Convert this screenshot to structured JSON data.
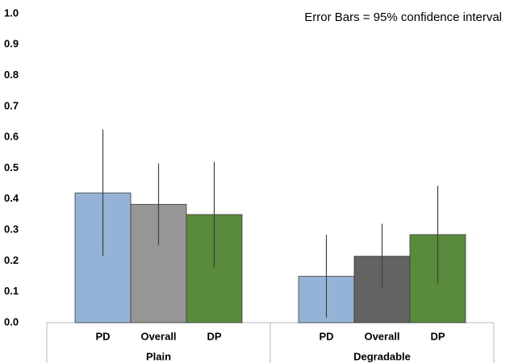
{
  "chart_data": {
    "type": "bar",
    "annotation": "Error Bars = 95% confidence interval",
    "groups": [
      "Plain",
      "Degradable"
    ],
    "categories": [
      "PD",
      "Overall",
      "DP",
      "PD",
      "Overall",
      "DP"
    ],
    "values": [
      0.42,
      0.383,
      0.35,
      0.15,
      0.215,
      0.285
    ],
    "errors": [
      0.205,
      0.132,
      0.171,
      0.134,
      0.105,
      0.158
    ],
    "colors": [
      "#95b3d7",
      "#969696",
      "#5a8a3c",
      "#95b3d7",
      "#636363",
      "#5a8a3c"
    ],
    "ylim": [
      0,
      1
    ],
    "yticks": [
      {
        "value": 0,
        "label": "0.0"
      },
      {
        "value": 0.1,
        "label": "0.1"
      },
      {
        "value": 0.2,
        "label": "0.2"
      },
      {
        "value": 0.3,
        "label": "0.3"
      },
      {
        "value": 0.4,
        "label": "0.4"
      },
      {
        "value": 0.5,
        "label": "0.5"
      },
      {
        "value": 0.6,
        "label": "0.6"
      },
      {
        "value": 0.7,
        "label": "0.7"
      },
      {
        "value": 0.8,
        "label": "0.8"
      },
      {
        "value": 0.9,
        "label": "0.9"
      },
      {
        "value": 1,
        "label": "1.0"
      }
    ],
    "grid": false
  }
}
